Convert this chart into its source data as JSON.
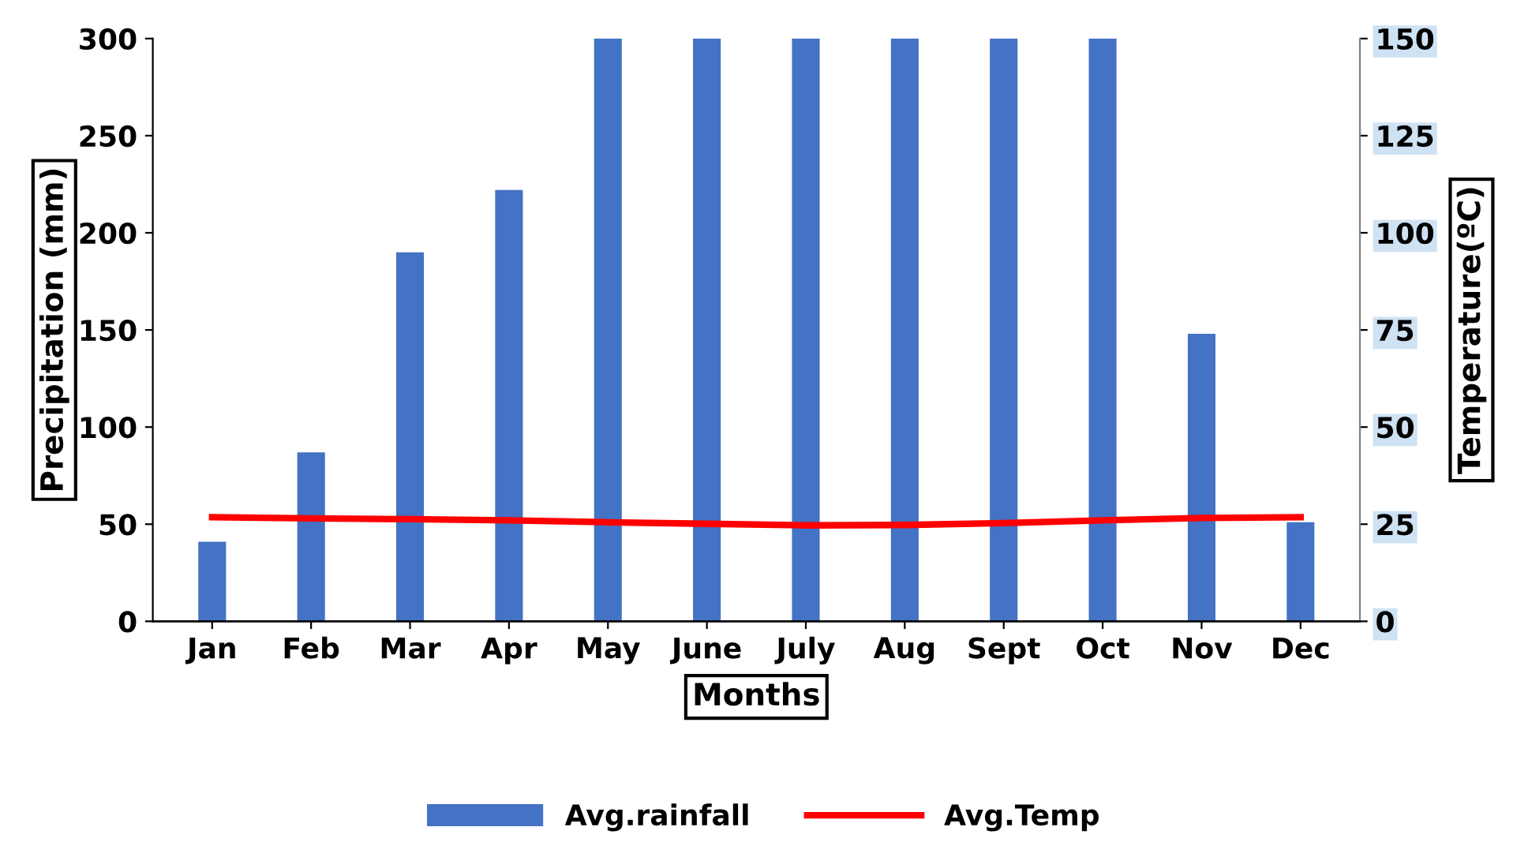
{
  "chart_data": {
    "type": "bar",
    "xlabel": "Months",
    "ylabel": "Precipitation (mm)",
    "y2label": "Temperature(ºC)",
    "categories": [
      "Jan",
      "Feb",
      "Mar",
      "Apr",
      "May",
      "June",
      "July",
      "Aug",
      "Sept",
      "Oct",
      "Nov",
      "Dec"
    ],
    "series": [
      {
        "name": "Avg.rainfall",
        "color": "#4472c4",
        "values": [
          41,
          87,
          190,
          222,
          300,
          300,
          300,
          300,
          300,
          300,
          148,
          51
        ]
      },
      {
        "name": "Avg.Temp",
        "type": "line",
        "axis": "y2",
        "color": "#ff0000",
        "marker": "none",
        "line_style": "solid",
        "values": [
          26.8,
          26.5,
          26.3,
          26,
          25.5,
          25.1,
          24.7,
          24.8,
          25.3,
          26,
          26.6,
          26.8
        ]
      }
    ],
    "ylim": [
      0,
      300
    ],
    "yticks": [
      0,
      50,
      100,
      150,
      200,
      250,
      300
    ],
    "y2lim": [
      0,
      150
    ],
    "y2ticks": [
      0,
      25,
      50,
      75,
      100,
      125,
      150
    ],
    "grid": false,
    "legend": "bottom"
  }
}
